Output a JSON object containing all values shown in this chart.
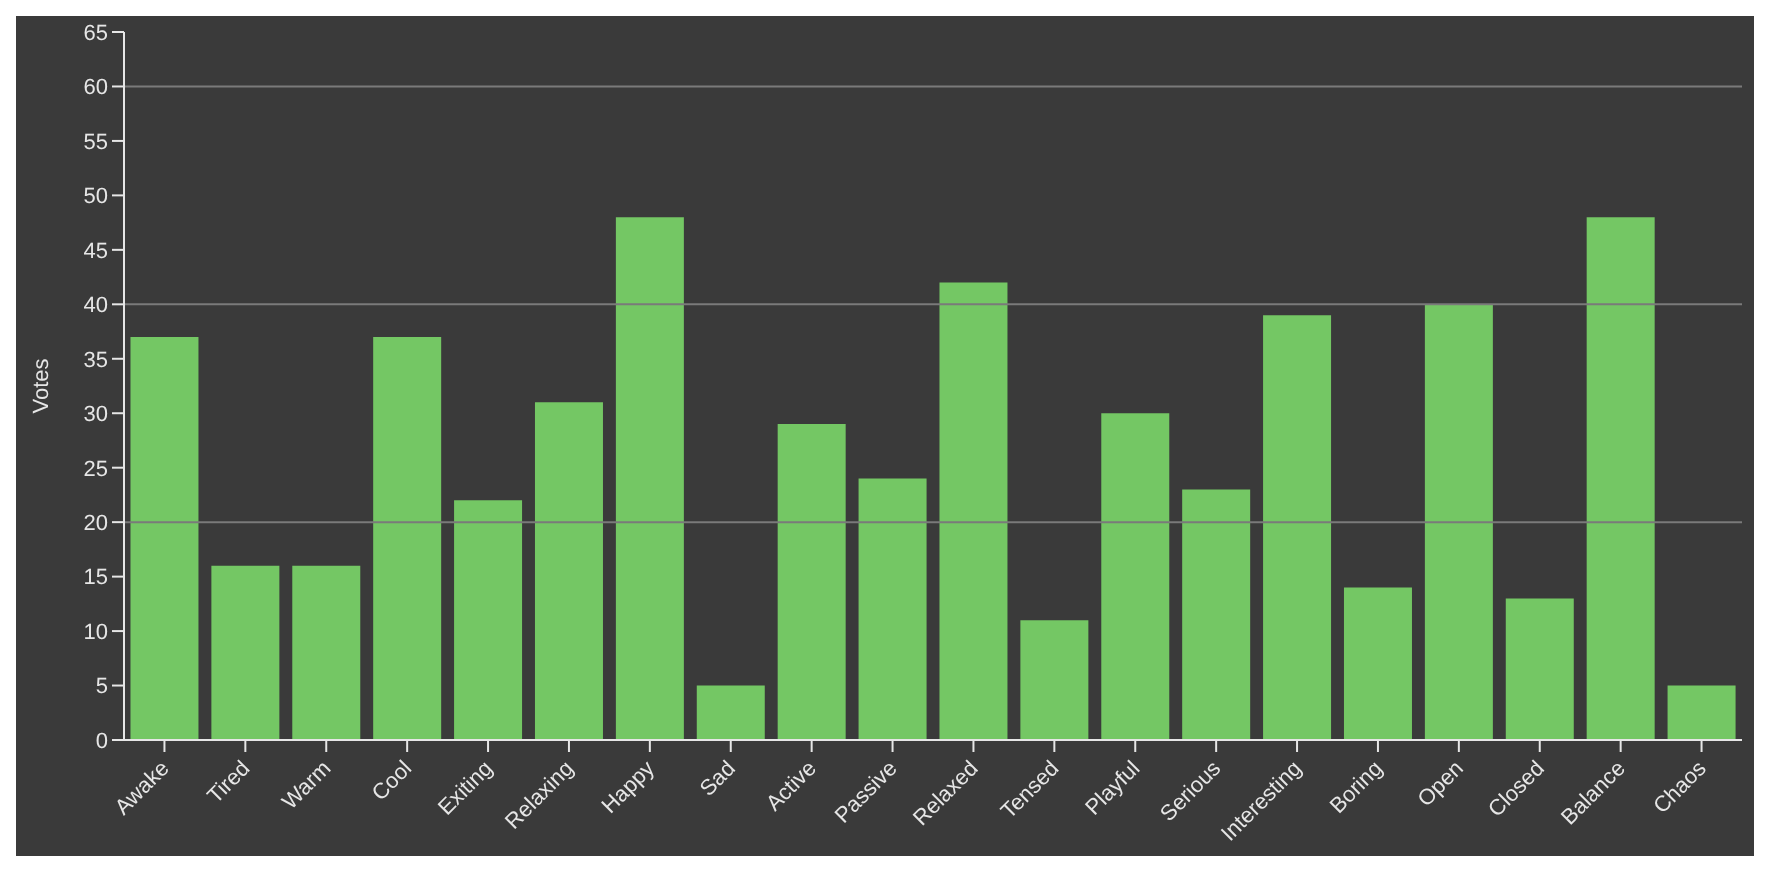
{
  "chart_data": {
    "type": "bar",
    "ylabel": "Votes",
    "categories": [
      "Awake",
      "Tired",
      "Warm",
      "Cool",
      "Exiting",
      "Relaxing",
      "Happy",
      "Sad",
      "Active",
      "Passive",
      "Relaxed",
      "Tensed",
      "Playful",
      "Serious",
      "Interesting",
      "Boring",
      "Open",
      "Closed",
      "Balance",
      "Chaos"
    ],
    "values": [
      37,
      16,
      16,
      37,
      22,
      31,
      48,
      5,
      29,
      24,
      42,
      11,
      30,
      23,
      39,
      14,
      40,
      13,
      48,
      5
    ],
    "color": "#74c764",
    "ylim": [
      0,
      65
    ],
    "yticks": [
      0,
      5,
      10,
      15,
      20,
      25,
      30,
      35,
      40,
      45,
      50,
      55,
      60,
      65
    ],
    "ref_lines": [
      {
        "axis": "y",
        "value": 20,
        "color": "#7a7a7a"
      },
      {
        "axis": "y",
        "value": 40,
        "color": "#7a7a7a"
      },
      {
        "axis": "y",
        "value": 60,
        "color": "#7a7a7a"
      }
    ]
  }
}
